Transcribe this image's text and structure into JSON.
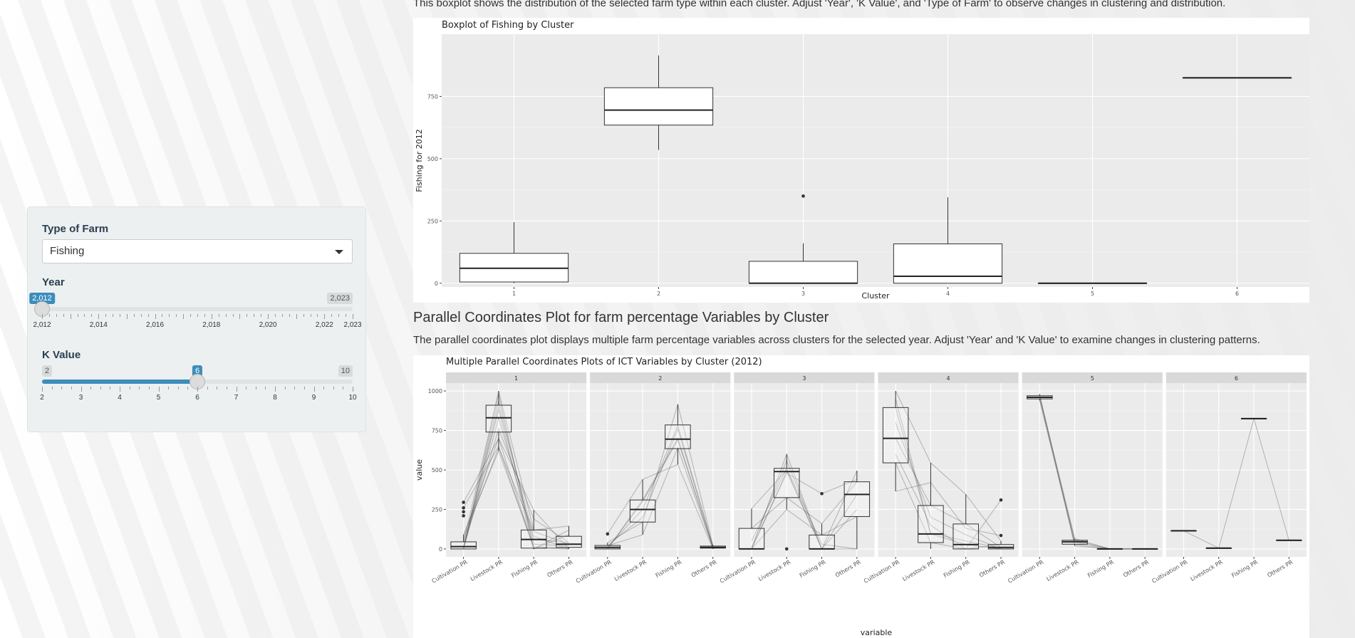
{
  "intro_text": "This boxplot shows the distribution of the selected farm type within each cluster. Adjust 'Year', 'K Value', and 'Type of Farm' to observe changes in clustering and distribution.",
  "controls": {
    "farm_type": {
      "label": "Type of Farm",
      "value": "Fishing"
    },
    "year": {
      "label": "Year",
      "min_label": "2,012",
      "max_label": "2,023",
      "value_label": "2,012",
      "value": 2012,
      "min": 2012,
      "max": 2023,
      "tick_labels": [
        "2,012",
        "2,014",
        "2,016",
        "2,018",
        "2,020",
        "2,022",
        "2,023"
      ]
    },
    "k_value": {
      "label": "K Value",
      "min_label": "2",
      "max_label": "10",
      "value_label": "6",
      "value": 6,
      "min": 2,
      "max": 10,
      "tick_labels": [
        "2",
        "3",
        "4",
        "5",
        "6",
        "7",
        "8",
        "9",
        "10"
      ]
    }
  },
  "section2": {
    "heading": "Parallel Coordinates Plot for farm percentage Variables by Cluster",
    "description": "The parallel coordinates plot displays multiple farm percentage variables across clusters for the selected year. Adjust 'Year' and 'K Value' to examine changes in clustering patterns."
  },
  "chart_data": [
    {
      "type": "boxplot",
      "title": "Boxplot of Fishing by Cluster",
      "xlabel": "Cluster",
      "ylabel": "Fishing for 2012",
      "categories": [
        "1",
        "2",
        "3",
        "4",
        "5",
        "6"
      ],
      "ylim": [
        -15,
        1000
      ],
      "yticks": [
        0,
        250,
        500,
        750
      ],
      "ytick_labels": [
        "0",
        "250",
        "500",
        "750"
      ],
      "boxes": [
        {
          "q1": 5,
          "median": 60,
          "q3": 120,
          "whisker_low": 0,
          "whisker_high": 245,
          "outliers": []
        },
        {
          "q1": 635,
          "median": 695,
          "q3": 785,
          "whisker_low": 535,
          "whisker_high": 915,
          "outliers": []
        },
        {
          "q1": 0,
          "median": 0,
          "q3": 88,
          "whisker_low": 0,
          "whisker_high": 160,
          "outliers": [
            350
          ]
        },
        {
          "q1": 0,
          "median": 28,
          "q3": 158,
          "whisker_low": 0,
          "whisker_high": 345,
          "outliers": []
        },
        {
          "q1": 0,
          "median": 0,
          "q3": 0,
          "whisker_low": 0,
          "whisker_high": 0,
          "outliers": []
        },
        {
          "q1": 825,
          "median": 825,
          "q3": 825,
          "whisker_low": 825,
          "whisker_high": 825,
          "outliers": []
        }
      ]
    },
    {
      "type": "boxplot",
      "title": "Multiple Parallel Coordinates Plots of ICT Variables by Cluster (2012)",
      "xlabel": "variable",
      "ylabel": "value",
      "facets": [
        "1",
        "2",
        "3",
        "4",
        "5",
        "6"
      ],
      "variables": [
        "Cultivation PR",
        "Livestock PR",
        "Fishing PR",
        "Others PR"
      ],
      "ylim": [
        -50,
        1050
      ],
      "yticks": [
        0,
        250,
        500,
        750,
        1000
      ],
      "ytick_labels": [
        "0",
        "250",
        "500",
        "750",
        "1000"
      ],
      "panels": [
        {
          "boxes": [
            {
              "q1": 0,
              "median": 15,
              "q3": 45,
              "whisker_low": 0,
              "whisker_high": 90,
              "outliers": [
                210,
                235,
                260,
                295
              ]
            },
            {
              "q1": 740,
              "median": 830,
              "q3": 910,
              "whisker_low": 620,
              "whisker_high": 1000,
              "outliers": []
            },
            {
              "q1": 5,
              "median": 60,
              "q3": 120,
              "whisker_low": 0,
              "whisker_high": 245,
              "outliers": []
            },
            {
              "q1": 10,
              "median": 30,
              "q3": 80,
              "whisker_low": 0,
              "whisker_high": 145,
              "outliers": []
            }
          ]
        },
        {
          "boxes": [
            {
              "q1": 0,
              "median": 10,
              "q3": 22,
              "whisker_low": 0,
              "whisker_high": 40,
              "outliers": [
                95
              ]
            },
            {
              "q1": 170,
              "median": 250,
              "q3": 310,
              "whisker_low": 90,
              "whisker_high": 440,
              "outliers": []
            },
            {
              "q1": 635,
              "median": 695,
              "q3": 785,
              "whisker_low": 535,
              "whisker_high": 915,
              "outliers": []
            },
            {
              "q1": 5,
              "median": 10,
              "q3": 18,
              "whisker_low": 0,
              "whisker_high": 25,
              "outliers": []
            }
          ]
        },
        {
          "boxes": [
            {
              "q1": 0,
              "median": 0,
              "q3": 130,
              "whisker_low": 0,
              "whisker_high": 255,
              "outliers": []
            },
            {
              "q1": 325,
              "median": 490,
              "q3": 510,
              "whisker_low": 250,
              "whisker_high": 600,
              "outliers": [
                0
              ]
            },
            {
              "q1": 0,
              "median": 0,
              "q3": 88,
              "whisker_low": 0,
              "whisker_high": 160,
              "outliers": [
                350
              ]
            },
            {
              "q1": 205,
              "median": 345,
              "q3": 425,
              "whisker_low": 0,
              "whisker_high": 495,
              "outliers": []
            }
          ]
        },
        {
          "boxes": [
            {
              "q1": 545,
              "median": 700,
              "q3": 895,
              "whisker_low": 365,
              "whisker_high": 1000,
              "outliers": []
            },
            {
              "q1": 40,
              "median": 95,
              "q3": 275,
              "whisker_low": 0,
              "whisker_high": 545,
              "outliers": []
            },
            {
              "q1": 0,
              "median": 28,
              "q3": 158,
              "whisker_low": 0,
              "whisker_high": 345,
              "outliers": []
            },
            {
              "q1": 0,
              "median": 10,
              "q3": 28,
              "whisker_low": 0,
              "whisker_high": 50,
              "outliers": [
                85,
                310
              ]
            }
          ]
        },
        {
          "boxes": [
            {
              "q1": 950,
              "median": 960,
              "q3": 970,
              "whisker_low": 940,
              "whisker_high": 980,
              "outliers": []
            },
            {
              "q1": 30,
              "median": 45,
              "q3": 55,
              "whisker_low": 20,
              "whisker_high": 65,
              "outliers": []
            },
            {
              "q1": 0,
              "median": 0,
              "q3": 0,
              "whisker_low": 0,
              "whisker_high": 0,
              "outliers": []
            },
            {
              "q1": 0,
              "median": 0,
              "q3": 0,
              "whisker_low": 0,
              "whisker_high": 0,
              "outliers": []
            }
          ]
        },
        {
          "boxes": [
            {
              "q1": 115,
              "median": 115,
              "q3": 115,
              "whisker_low": 115,
              "whisker_high": 115,
              "outliers": []
            },
            {
              "q1": 5,
              "median": 5,
              "q3": 5,
              "whisker_low": 5,
              "whisker_high": 5,
              "outliers": []
            },
            {
              "q1": 825,
              "median": 825,
              "q3": 825,
              "whisker_low": 825,
              "whisker_high": 825,
              "outliers": []
            },
            {
              "q1": 55,
              "median": 55,
              "q3": 55,
              "whisker_low": 55,
              "whisker_high": 55,
              "outliers": []
            }
          ]
        }
      ],
      "lines": [
        [
          [
            40,
            1000,
            120,
            145
          ],
          [
            5,
            980,
            5,
            10
          ],
          [
            60,
            640,
            110,
            30
          ],
          [
            0,
            940,
            30,
            20
          ],
          [
            80,
            700,
            245,
            0
          ],
          [
            0,
            880,
            0,
            120
          ],
          [
            90,
            620,
            15,
            0
          ],
          [
            20,
            900,
            80,
            0
          ],
          [
            295,
            700,
            5,
            0
          ],
          [
            260,
            650,
            0,
            90
          ],
          [
            0,
            830,
            60,
            40
          ],
          [
            10,
            760,
            190,
            40
          ]
        ],
        [
          [
            40,
            170,
            915,
            25
          ],
          [
            0,
            310,
            700,
            10
          ],
          [
            95,
            440,
            535,
            0
          ],
          [
            10,
            250,
            780,
            18
          ],
          [
            20,
            90,
            640,
            5
          ],
          [
            0,
            300,
            690,
            10
          ],
          [
            22,
            200,
            760,
            15
          ]
        ],
        [
          [
            0,
            600,
            0,
            250
          ],
          [
            255,
            500,
            0,
            495
          ],
          [
            130,
            325,
            160,
            425
          ],
          [
            0,
            490,
            0,
            345
          ],
          [
            0,
            250,
            88,
            205
          ],
          [
            50,
            510,
            30,
            0
          ],
          [
            10,
            560,
            0,
            0
          ],
          [
            0,
            480,
            350,
            440
          ]
        ],
        [
          [
            1000,
            545,
            345,
            50
          ],
          [
            700,
            275,
            158,
            10
          ],
          [
            895,
            95,
            28,
            0
          ],
          [
            545,
            40,
            0,
            310
          ],
          [
            365,
            420,
            130,
            85
          ],
          [
            800,
            200,
            90,
            0
          ],
          [
            600,
            150,
            0,
            28
          ],
          [
            950,
            100,
            50,
            5
          ]
        ],
        [
          [
            980,
            20,
            0,
            0
          ],
          [
            960,
            45,
            0,
            0
          ],
          [
            950,
            55,
            0,
            0
          ],
          [
            970,
            65,
            0,
            0
          ],
          [
            940,
            30,
            0,
            0
          ]
        ],
        [
          [
            115,
            5,
            825,
            55
          ]
        ]
      ]
    }
  ]
}
